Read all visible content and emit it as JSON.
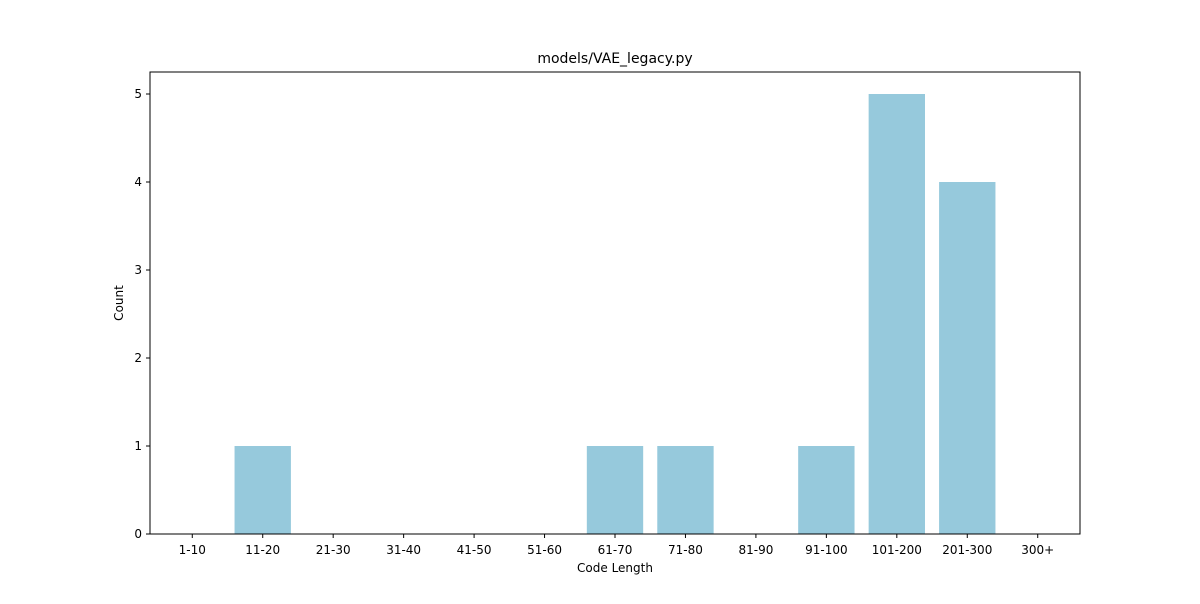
{
  "chart_data": {
    "type": "bar",
    "title": "models/VAE_legacy.py",
    "xlabel": "Code Length",
    "ylabel": "Count",
    "categories": [
      "1-10",
      "11-20",
      "21-30",
      "31-40",
      "41-50",
      "51-60",
      "61-70",
      "71-80",
      "81-90",
      "91-100",
      "101-200",
      "201-300",
      "300+"
    ],
    "values": [
      0,
      1,
      0,
      0,
      0,
      0,
      1,
      1,
      0,
      1,
      5,
      4,
      0
    ],
    "yticks": [
      "0",
      "1",
      "2",
      "3",
      "4",
      "5"
    ],
    "ylim": [
      0,
      5.25
    ],
    "grid": false,
    "bar_color": "#96c9dc"
  }
}
